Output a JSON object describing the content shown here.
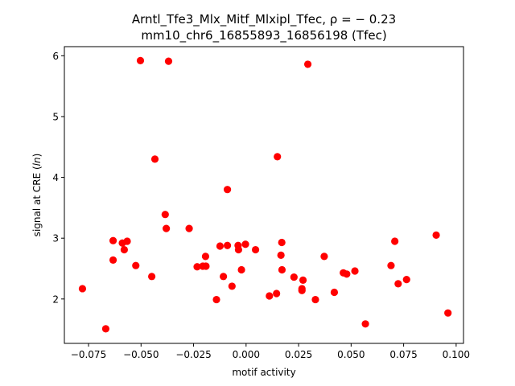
{
  "chart_data": {
    "type": "scatter",
    "title_line1": "Arntl_Tfe3_Mlx_Mitf_Mlxipl_Tfec, ρ = − 0.23",
    "title_line2": "mm10_chr6_16855893_16856198 (Tfec)",
    "xlabel": "motif activity",
    "ylabel_pre": "signal at CRE (",
    "ylabel_italic": "ln",
    "ylabel_post": ")",
    "xlim": [
      -0.0865,
      0.1035
    ],
    "ylim": [
      1.27,
      6.15
    ],
    "xticks": [
      -0.075,
      -0.05,
      -0.025,
      0.0,
      0.025,
      0.05,
      0.075,
      0.1
    ],
    "xtick_labels": [
      "−0.075",
      "−0.050",
      "−0.025",
      "0.000",
      "0.025",
      "0.050",
      "0.075",
      "0.100"
    ],
    "yticks": [
      2,
      3,
      4,
      5,
      6
    ],
    "ytick_labels": [
      "2",
      "3",
      "4",
      "5",
      "6"
    ],
    "point_color": "#ff0000",
    "grid": false,
    "points": [
      {
        "x": -0.0779,
        "y": 2.17
      },
      {
        "x": -0.0668,
        "y": 1.51
      },
      {
        "x": -0.0633,
        "y": 2.96
      },
      {
        "x": -0.0633,
        "y": 2.64
      },
      {
        "x": -0.0589,
        "y": 2.92
      },
      {
        "x": -0.058,
        "y": 2.81
      },
      {
        "x": -0.0566,
        "y": 2.95
      },
      {
        "x": -0.0525,
        "y": 2.55
      },
      {
        "x": -0.0503,
        "y": 5.92
      },
      {
        "x": -0.0449,
        "y": 2.37
      },
      {
        "x": -0.0434,
        "y": 4.3
      },
      {
        "x": -0.0385,
        "y": 3.39
      },
      {
        "x": -0.038,
        "y": 3.16
      },
      {
        "x": -0.0369,
        "y": 5.91
      },
      {
        "x": -0.0271,
        "y": 3.16
      },
      {
        "x": -0.0233,
        "y": 2.53
      },
      {
        "x": -0.0206,
        "y": 2.54
      },
      {
        "x": -0.0193,
        "y": 2.7
      },
      {
        "x": -0.0191,
        "y": 2.54
      },
      {
        "x": -0.0141,
        "y": 1.99
      },
      {
        "x": -0.0124,
        "y": 2.87
      },
      {
        "x": -0.0108,
        "y": 2.37
      },
      {
        "x": -0.0089,
        "y": 3.8
      },
      {
        "x": -0.0089,
        "y": 2.88
      },
      {
        "x": -0.0067,
        "y": 2.21
      },
      {
        "x": -0.0038,
        "y": 2.88
      },
      {
        "x": -0.0036,
        "y": 2.81
      },
      {
        "x": -0.0022,
        "y": 2.48
      },
      {
        "x": -0.0003,
        "y": 2.9
      },
      {
        "x": 0.0045,
        "y": 2.81
      },
      {
        "x": 0.0111,
        "y": 2.05
      },
      {
        "x": 0.0145,
        "y": 2.09
      },
      {
        "x": 0.0149,
        "y": 4.34
      },
      {
        "x": 0.0166,
        "y": 2.72
      },
      {
        "x": 0.017,
        "y": 2.93
      },
      {
        "x": 0.0171,
        "y": 2.48
      },
      {
        "x": 0.0228,
        "y": 2.36
      },
      {
        "x": 0.0266,
        "y": 2.14
      },
      {
        "x": 0.0266,
        "y": 2.17
      },
      {
        "x": 0.0271,
        "y": 2.31
      },
      {
        "x": 0.0294,
        "y": 5.86
      },
      {
        "x": 0.033,
        "y": 1.99
      },
      {
        "x": 0.0372,
        "y": 2.7
      },
      {
        "x": 0.042,
        "y": 2.11
      },
      {
        "x": 0.0463,
        "y": 2.43
      },
      {
        "x": 0.0479,
        "y": 2.41
      },
      {
        "x": 0.0518,
        "y": 2.46
      },
      {
        "x": 0.0568,
        "y": 1.59
      },
      {
        "x": 0.069,
        "y": 2.55
      },
      {
        "x": 0.0708,
        "y": 2.95
      },
      {
        "x": 0.0724,
        "y": 2.25
      },
      {
        "x": 0.0764,
        "y": 2.32
      },
      {
        "x": 0.0905,
        "y": 3.05
      },
      {
        "x": 0.0961,
        "y": 1.77
      }
    ]
  }
}
